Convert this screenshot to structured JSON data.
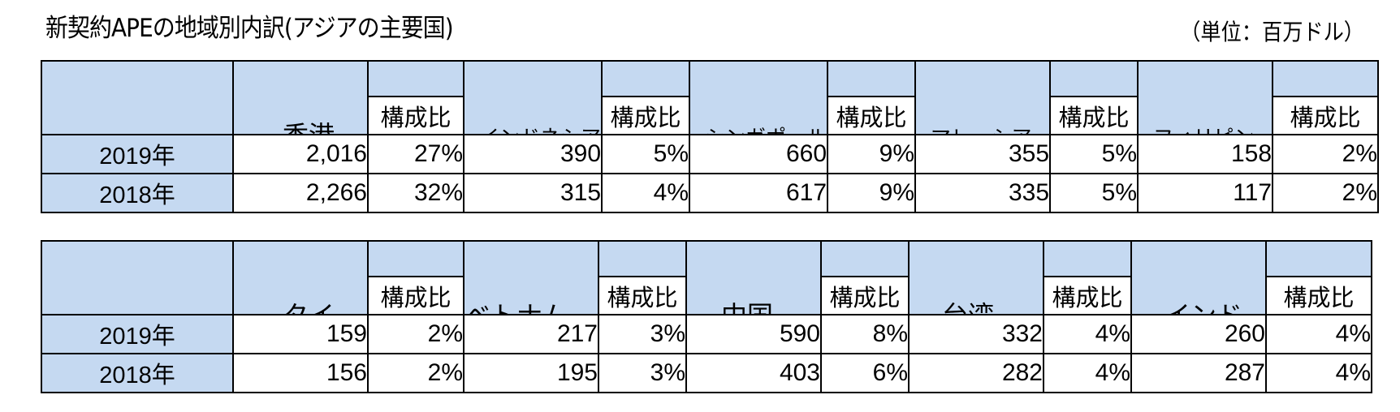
{
  "title": "新契約APEの地域別内訳(アジアの主要国)",
  "unit": "（単位：百万ドル）",
  "share_label": "構成比",
  "tables": [
    {
      "regions": [
        "香港",
        "インドネシア",
        "シンガポール",
        "マレーシア",
        "フィリピン"
      ],
      "rows": [
        {
          "year": "2019年",
          "values": [
            "2,016",
            "390",
            "660",
            "355",
            "158"
          ],
          "shares": [
            "27%",
            "5%",
            "9%",
            "5%",
            "2%"
          ]
        },
        {
          "year": "2018年",
          "values": [
            "2,266",
            "315",
            "617",
            "335",
            "117"
          ],
          "shares": [
            "32%",
            "4%",
            "9%",
            "5%",
            "2%"
          ]
        }
      ]
    },
    {
      "regions": [
        "タイ",
        "ベトナム",
        "中国",
        "台湾",
        "インド"
      ],
      "rows": [
        {
          "year": "2019年",
          "values": [
            "159",
            "217",
            "590",
            "332",
            "260"
          ],
          "shares": [
            "2%",
            "3%",
            "8%",
            "4%",
            "4%"
          ]
        },
        {
          "year": "2018年",
          "values": [
            "156",
            "195",
            "403",
            "282",
            "287"
          ],
          "shares": [
            "2%",
            "3%",
            "6%",
            "4%",
            "4%"
          ]
        }
      ]
    }
  ]
}
